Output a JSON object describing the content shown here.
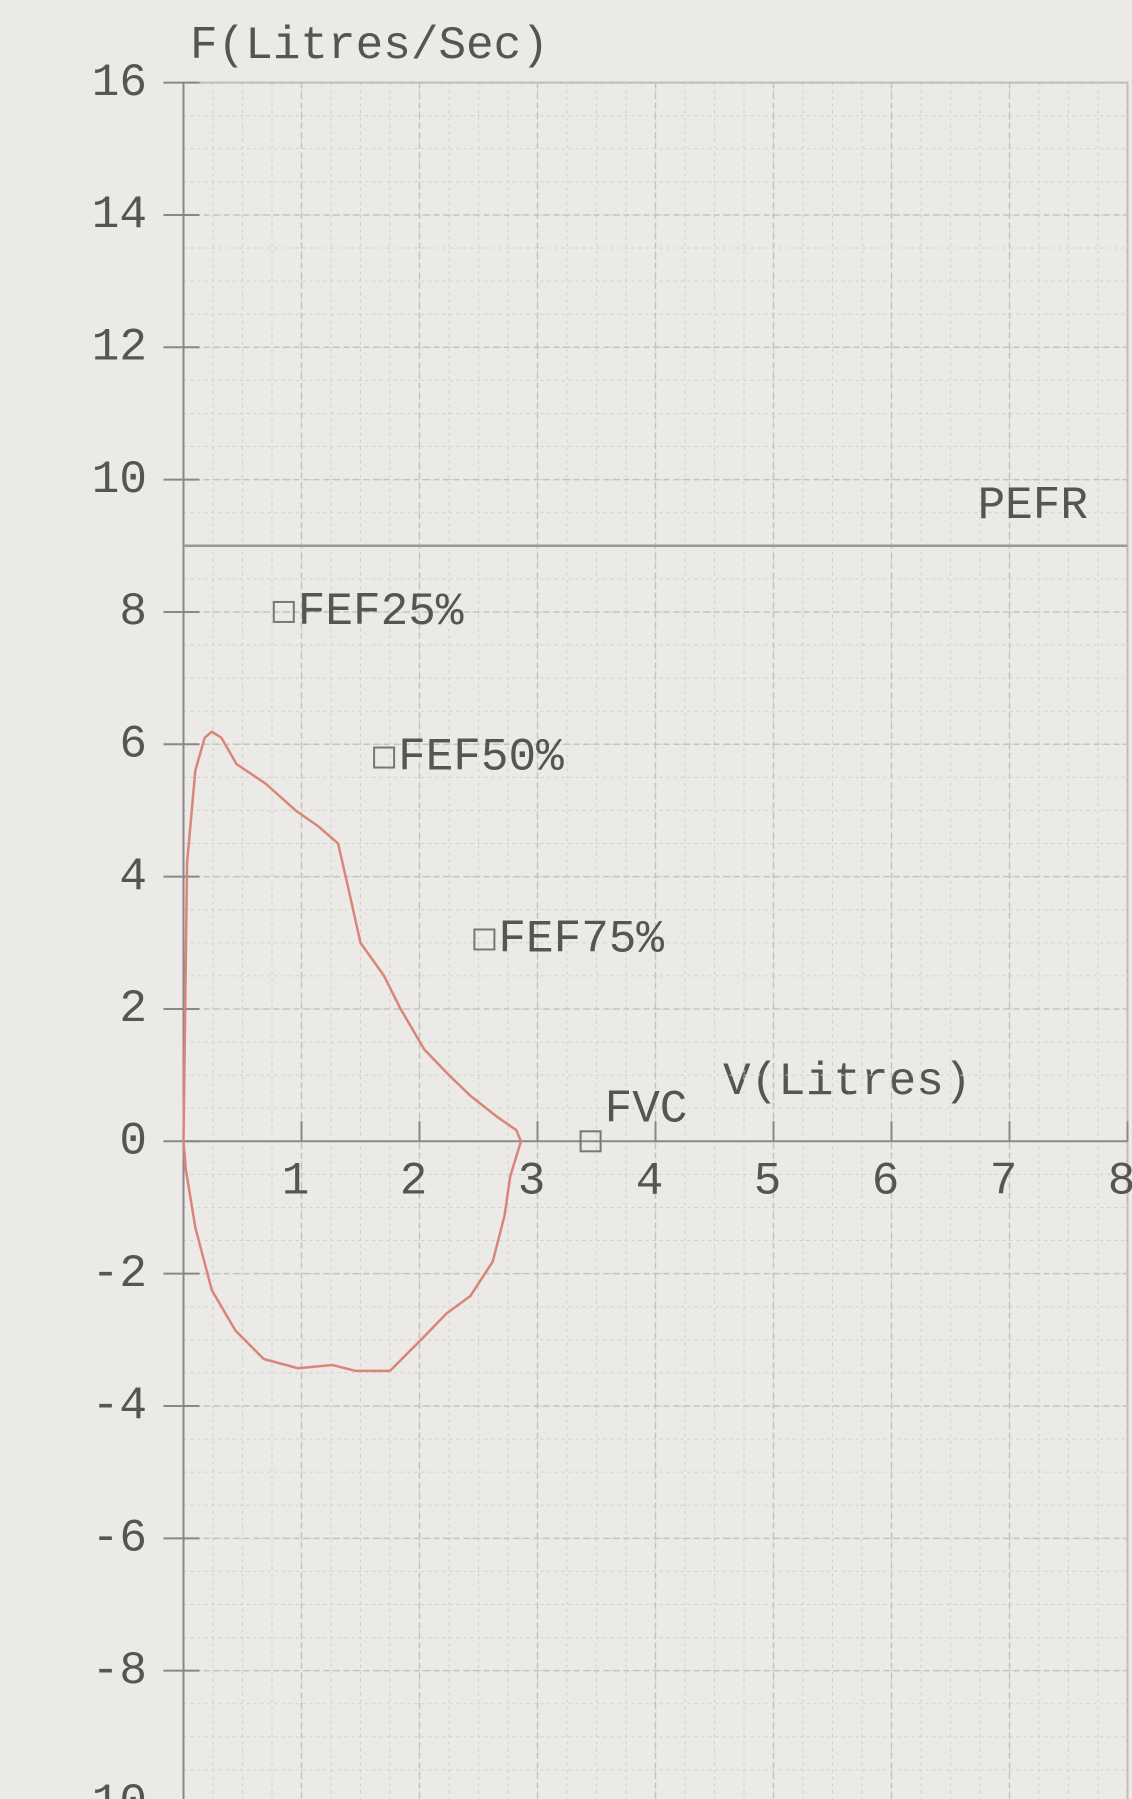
{
  "chart_data": {
    "type": "line",
    "y_label": "F(Litres/Sec)",
    "x_label": "V(Litres)",
    "xlim": [
      0,
      8
    ],
    "xticks": [
      1,
      2,
      3,
      4,
      5,
      6,
      7,
      8
    ],
    "ylim": [
      -10,
      16
    ],
    "yticks": [
      16,
      14,
      12,
      10,
      8,
      6,
      4,
      2,
      0,
      -2,
      -4,
      -6,
      -8,
      -10
    ],
    "grid": true,
    "loop": {
      "color": "#d9857a",
      "x": [
        0,
        0.03,
        0.1,
        0.18,
        0.24,
        0.32,
        0.45,
        0.7,
        0.95,
        1.15,
        1.31,
        1.4,
        1.5,
        1.7,
        1.84,
        2.04,
        2.25,
        2.43,
        2.65,
        2.82,
        2.86,
        2.77,
        2.72,
        2.62,
        2.43,
        2.23,
        2.04,
        1.75,
        1.46,
        1.26,
        0.97,
        0.68,
        0.44,
        0.24,
        0.1,
        0.02,
        0
      ],
      "values": [
        0,
        4.2,
        5.6,
        6.1,
        6.19,
        6.1,
        5.7,
        5.4,
        5.0,
        4.75,
        4.5,
        3.8,
        3.0,
        2.5,
        2.0,
        1.39,
        1.0,
        0.69,
        0.38,
        0.17,
        0,
        -0.52,
        -1.13,
        -1.82,
        -2.34,
        -2.6,
        -2.95,
        -3.47,
        -3.47,
        -3.38,
        -3.43,
        -3.29,
        -2.86,
        -2.25,
        -1.3,
        -0.43,
        0
      ]
    },
    "markers": [
      {
        "label": "FEF25%",
        "x": 0.85,
        "y": 8
      },
      {
        "label": "FEF50%",
        "x": 1.7,
        "y": 5.8
      },
      {
        "label": "FEF75%",
        "x": 2.55,
        "y": 3.05
      },
      {
        "label": "FVC",
        "x": 3.45,
        "y": 0
      }
    ],
    "pefr": {
      "label": "PEFR",
      "value": 9
    }
  }
}
